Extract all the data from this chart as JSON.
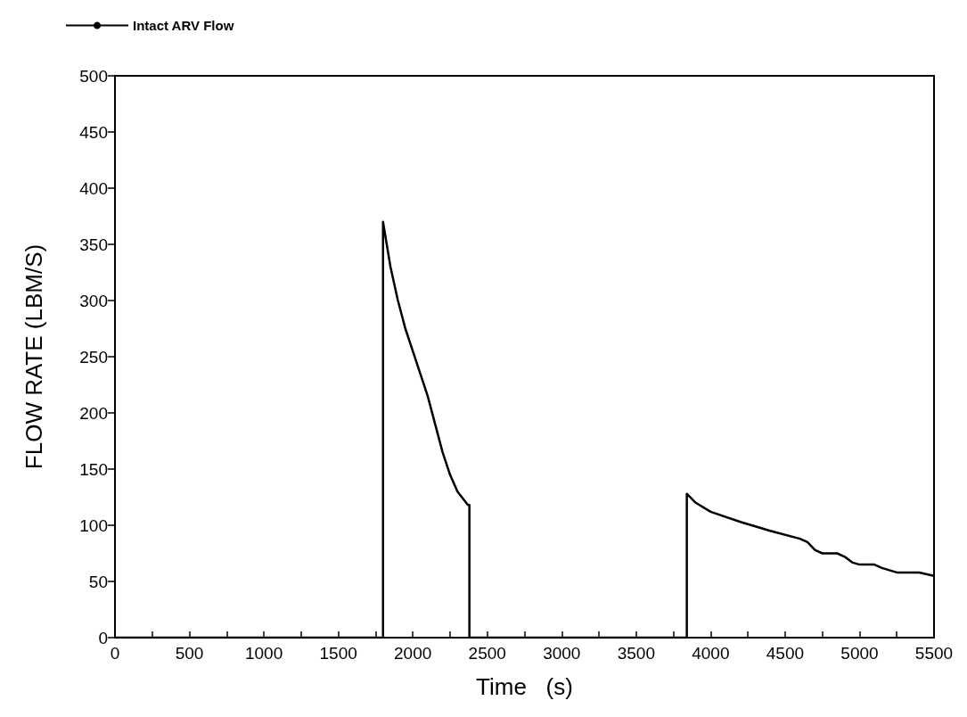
{
  "chart_data": {
    "type": "line",
    "xlabel": "Time   (s)",
    "ylabel": "FLOW RATE (LBM/S)",
    "legend": "top left",
    "grid": false,
    "marker": "none",
    "line_style": "solid",
    "xlim": [
      0,
      5500
    ],
    "ylim": [
      0,
      500
    ],
    "xticks": [
      0,
      {
        "value": 250,
        "label": null
      },
      500,
      {
        "value": 750,
        "label": null
      },
      1000,
      {
        "value": 1250,
        "label": null
      },
      1500,
      {
        "value": 1750,
        "label": null
      },
      2000,
      {
        "value": 2250,
        "label": null
      },
      2500,
      {
        "value": 2750,
        "label": null
      },
      3000,
      {
        "value": 3250,
        "label": null
      },
      3500,
      {
        "value": 3750,
        "label": null
      },
      4000,
      {
        "value": 4250,
        "label": null
      },
      4500,
      {
        "value": 4750,
        "label": null
      },
      5000,
      {
        "value": 5250,
        "label": null
      },
      5500
    ],
    "yticks": [
      0,
      50,
      100,
      150,
      200,
      250,
      300,
      350,
      400,
      450,
      500
    ],
    "series": [
      {
        "name": "Intact ARV Flow",
        "color": "#000000",
        "x": [
          0,
          1800,
          1800,
          1850,
          1900,
          1950,
          2000,
          2050,
          2100,
          2150,
          2200,
          2250,
          2300,
          2370,
          2380,
          2380,
          3840,
          3840,
          3900,
          4000,
          4200,
          4400,
          4600,
          4650,
          4700,
          4750,
          4850,
          4900,
          4950,
          5000,
          5100,
          5150,
          5250,
          5400,
          5500
        ],
        "values": [
          0,
          0,
          370,
          330,
          300,
          275,
          255,
          235,
          215,
          190,
          165,
          145,
          130,
          118,
          118,
          0,
          0,
          128,
          120,
          112,
          103,
          95,
          88,
          85,
          78,
          75,
          75,
          72,
          67,
          65,
          65,
          62,
          58,
          58,
          55
        ]
      }
    ]
  }
}
